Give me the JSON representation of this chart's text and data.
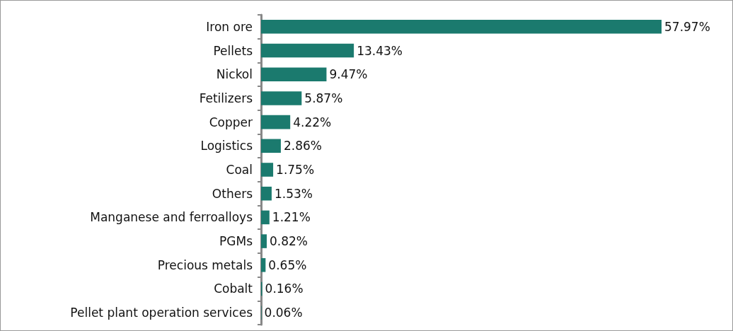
{
  "chart_data": {
    "type": "bar",
    "orientation": "horizontal",
    "categories": [
      "Iron ore",
      "Pellets",
      "Nickol",
      "Fetilizers",
      "Copper",
      "Logistics",
      "Coal",
      "Others",
      "Manganese and ferroalloys",
      "PGMs",
      "Precious metals",
      "Cobalt",
      "Pellet plant operation services"
    ],
    "values": [
      57.97,
      13.43,
      9.47,
      5.87,
      4.22,
      2.86,
      1.75,
      1.53,
      1.21,
      0.82,
      0.65,
      0.16,
      0.06
    ],
    "value_labels": [
      "57.97%",
      "13.43%",
      "9.47%",
      "5.87%",
      "4.22%",
      "2.86%",
      "1.75%",
      "1.53%",
      "1.21%",
      "0.82%",
      "0.65%",
      "0.16%",
      "0.06%"
    ],
    "color": "#1b7a6e"
  }
}
